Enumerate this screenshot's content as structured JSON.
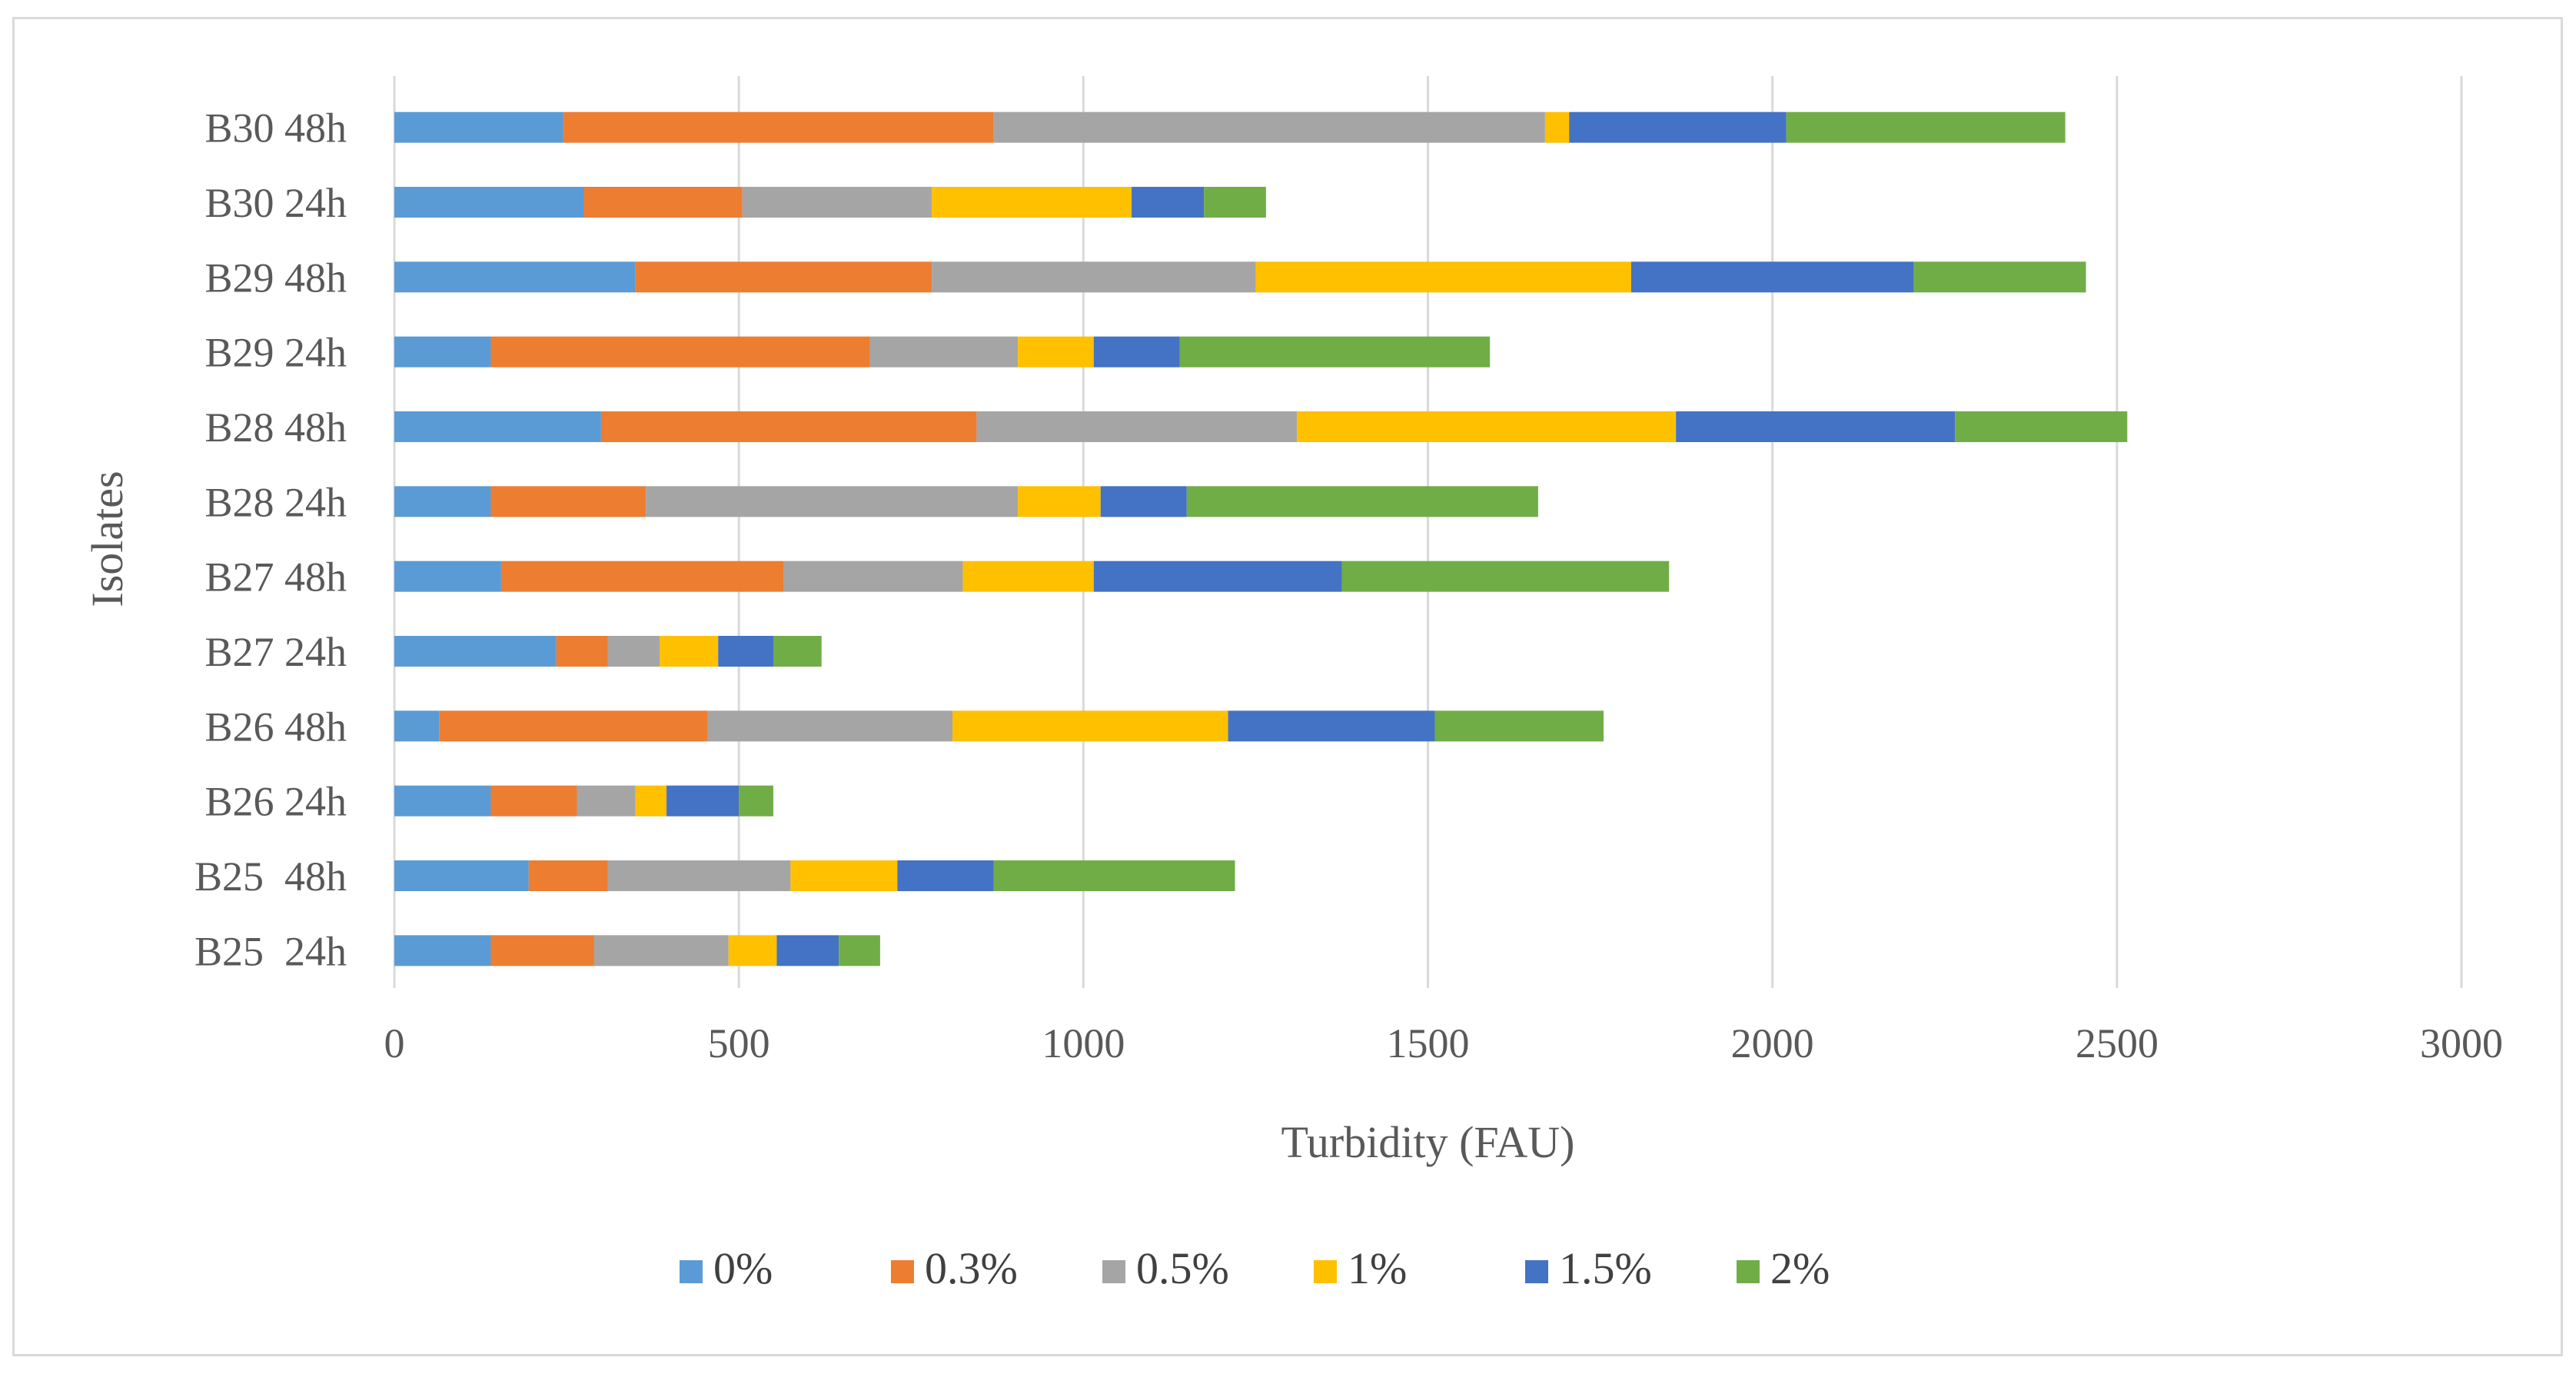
{
  "chart_data": {
    "type": "bar",
    "orientation": "horizontal",
    "stacked": true,
    "title": "",
    "xlabel": "Turbidity (FAU)",
    "ylabel": "Isolates",
    "xlim": [
      0,
      3000
    ],
    "xticks": [
      0,
      500,
      1000,
      1500,
      2000,
      2500,
      3000
    ],
    "xtick_labels": [
      "0",
      "500",
      "1000",
      "1500",
      "2000",
      "2500",
      "3000"
    ],
    "grid": "vertical major gridlines",
    "legend_position": "bottom",
    "categories": [
      "B25  24h",
      "B25  48h",
      "B26 24h",
      "B26 48h",
      "B27 24h",
      "B27 48h",
      "B28 24h",
      "B28 48h",
      "B29 24h",
      "B29 48h",
      "B30 24h",
      "B30 48h"
    ],
    "series": [
      {
        "name": "0%",
        "color": "#5b9bd5",
        "values": [
          140,
          195,
          140,
          65,
          235,
          155,
          140,
          300,
          140,
          350,
          275,
          245
        ]
      },
      {
        "name": "0.3%",
        "color": "#ed7d31",
        "values": [
          150,
          115,
          125,
          390,
          75,
          410,
          225,
          545,
          550,
          430,
          230,
          625
        ]
      },
      {
        "name": "0.5%",
        "color": "#a5a5a5",
        "values": [
          195,
          265,
          85,
          355,
          75,
          260,
          540,
          465,
          215,
          470,
          275,
          800
        ]
      },
      {
        "name": "1%",
        "color": "#ffc000",
        "values": [
          70,
          155,
          45,
          400,
          85,
          190,
          120,
          550,
          110,
          545,
          290,
          35
        ]
      },
      {
        "name": "1.5%",
        "color": "#4472c4",
        "values": [
          90,
          140,
          105,
          300,
          80,
          360,
          125,
          405,
          125,
          410,
          105,
          315
        ]
      },
      {
        "name": "2%",
        "color": "#70ad47",
        "values": [
          60,
          350,
          50,
          245,
          70,
          475,
          510,
          250,
          450,
          250,
          90,
          405
        ]
      }
    ]
  }
}
